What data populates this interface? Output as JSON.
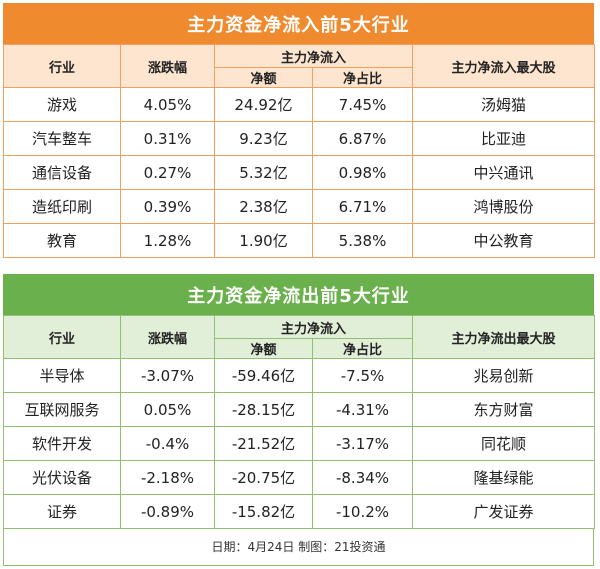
{
  "inflow": {
    "title": "主力资金净流入前5大行业",
    "headers": {
      "industry": "行业",
      "change": "涨跌幅",
      "group": "主力净流入",
      "net": "净额",
      "ratio": "净占比",
      "top": "主力净流入最大股"
    },
    "rows": [
      {
        "industry": "游戏",
        "change": "4.05%",
        "net": "24.92亿",
        "ratio": "7.45%",
        "top": "汤姆猫"
      },
      {
        "industry": "汽车整车",
        "change": "0.31%",
        "net": "9.23亿",
        "ratio": "6.87%",
        "top": "比亚迪"
      },
      {
        "industry": "通信设备",
        "change": "0.27%",
        "net": "5.32亿",
        "ratio": "0.98%",
        "top": "中兴通讯"
      },
      {
        "industry": "造纸印刷",
        "change": "0.39%",
        "net": "2.38亿",
        "ratio": "6.71%",
        "top": "鸿博股份"
      },
      {
        "industry": "教育",
        "change": "1.28%",
        "net": "1.90亿",
        "ratio": "5.38%",
        "top": "中公教育"
      }
    ]
  },
  "outflow": {
    "title": "主力资金净流出前5大行业",
    "headers": {
      "industry": "行业",
      "change": "涨跌幅",
      "group": "主力净流入",
      "net": "净额",
      "ratio": "净占比",
      "top": "主力净流出最大股"
    },
    "rows": [
      {
        "industry": "半导体",
        "change": "-3.07%",
        "net": "-59.46亿",
        "ratio": "-7.5%",
        "top": "兆易创新"
      },
      {
        "industry": "互联网服务",
        "change": "0.05%",
        "net": "-28.15亿",
        "ratio": "-4.31%",
        "top": "东方财富"
      },
      {
        "industry": "软件开发",
        "change": "-0.4%",
        "net": "-21.52亿",
        "ratio": "-3.17%",
        "top": "同花顺"
      },
      {
        "industry": "光伏设备",
        "change": "-2.18%",
        "net": "-20.75亿",
        "ratio": "-8.34%",
        "top": "隆基绿能"
      },
      {
        "industry": "证券",
        "change": "-0.89%",
        "net": "-15.82亿",
        "ratio": "-10.2%",
        "top": "广发证券"
      }
    ]
  },
  "footer": "日期：4月24日 制图：21投资通",
  "colors": {
    "inflow_title_bg": "#ef8a2f",
    "inflow_header_bg": "#fde5cf",
    "outflow_title_bg": "#6ab04c",
    "outflow_header_bg": "#e2efd8"
  }
}
